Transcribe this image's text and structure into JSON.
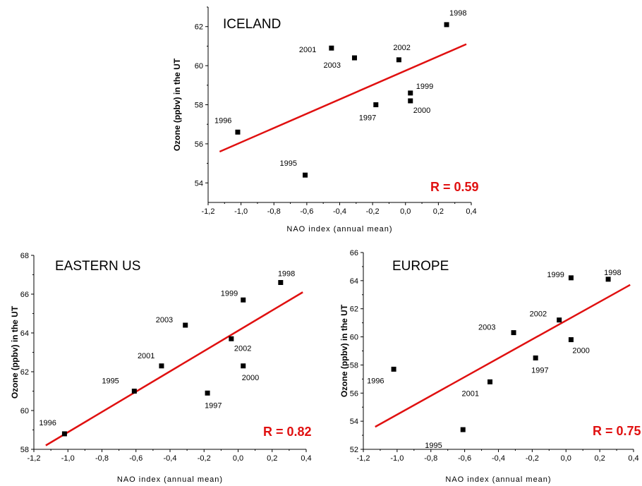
{
  "chart_data": [
    {
      "type": "scatter",
      "title": "ICELAND",
      "xlabel": "NAO index (annual mean)",
      "ylabel": "Ozone (ppbv) in the UT",
      "xlim": [
        -1.2,
        0.4
      ],
      "ylim": [
        53,
        63
      ],
      "xticks": [
        "-1,2",
        "-1,0",
        "-0,8",
        "-0,6",
        "-0,4",
        "-0,2",
        "0,0",
        "0,2",
        "0,4"
      ],
      "yticks": [
        "54",
        "56",
        "58",
        "60",
        "62"
      ],
      "points": [
        {
          "label": "1995",
          "x": -0.61,
          "y": 54.4
        },
        {
          "label": "1996",
          "x": -1.02,
          "y": 56.6
        },
        {
          "label": "1997",
          "x": -0.18,
          "y": 58.0
        },
        {
          "label": "1998",
          "x": 0.25,
          "y": 62.1
        },
        {
          "label": "1999",
          "x": 0.03,
          "y": 58.6
        },
        {
          "label": "2000",
          "x": 0.03,
          "y": 58.2
        },
        {
          "label": "2001",
          "x": -0.45,
          "y": 60.9
        },
        {
          "label": "2002",
          "x": -0.04,
          "y": 60.3
        },
        {
          "label": "2003",
          "x": -0.31,
          "y": 60.4
        }
      ],
      "fit": {
        "x": [
          -1.13,
          0.37
        ],
        "y": [
          55.6,
          61.1
        ]
      },
      "annotation": "R = 0.59",
      "fit_color": "#e01010"
    },
    {
      "type": "scatter",
      "title": "EASTERN US",
      "xlabel": "NAO index (annual mean)",
      "ylabel": "Ozone (ppbv) in the UT",
      "xlim": [
        -1.2,
        0.4
      ],
      "ylim": [
        58,
        68
      ],
      "xticks": [
        "-1,2",
        "-1,0",
        "-0,8",
        "-0,6",
        "-0,4",
        "-0,2",
        "0,0",
        "0,2",
        "0,4"
      ],
      "yticks": [
        "58",
        "60",
        "62",
        "64",
        "66",
        "68"
      ],
      "points": [
        {
          "label": "1995",
          "x": -0.61,
          "y": 61.0
        },
        {
          "label": "1996",
          "x": -1.02,
          "y": 58.8
        },
        {
          "label": "1997",
          "x": -0.18,
          "y": 60.9
        },
        {
          "label": "1998",
          "x": 0.25,
          "y": 66.6
        },
        {
          "label": "1999",
          "x": 0.03,
          "y": 65.7
        },
        {
          "label": "2000",
          "x": 0.03,
          "y": 62.3
        },
        {
          "label": "2001",
          "x": -0.45,
          "y": 62.3
        },
        {
          "label": "2002",
          "x": -0.04,
          "y": 63.7
        },
        {
          "label": "2003",
          "x": -0.31,
          "y": 64.4
        }
      ],
      "fit": {
        "x": [
          -1.13,
          0.38
        ],
        "y": [
          58.2,
          66.1
        ]
      },
      "annotation": "R = 0.82",
      "fit_color": "#e01010"
    },
    {
      "type": "scatter",
      "title": "EUROPE",
      "xlabel": "NAO index (annual mean)",
      "ylabel": "Ozone (ppbv) in the UT",
      "xlim": [
        -1.2,
        0.4
      ],
      "ylim": [
        52,
        66
      ],
      "xticks": [
        "-1,2",
        "-1,0",
        "-0,8",
        "-0,6",
        "-0,4",
        "-0,2",
        "0,0",
        "0,2",
        "0,4"
      ],
      "yticks": [
        "52",
        "54",
        "56",
        "58",
        "60",
        "62",
        "64",
        "66"
      ],
      "points": [
        {
          "label": "1995",
          "x": -0.61,
          "y": 53.4
        },
        {
          "label": "1996",
          "x": -1.02,
          "y": 57.7
        },
        {
          "label": "1997",
          "x": -0.18,
          "y": 58.5
        },
        {
          "label": "1998",
          "x": 0.25,
          "y": 64.1
        },
        {
          "label": "1999",
          "x": 0.03,
          "y": 64.2
        },
        {
          "label": "2000",
          "x": 0.03,
          "y": 59.8
        },
        {
          "label": "2001",
          "x": -0.45,
          "y": 56.8
        },
        {
          "label": "2002",
          "x": -0.04,
          "y": 61.2
        },
        {
          "label": "2003",
          "x": -0.31,
          "y": 60.3
        }
      ],
      "fit": {
        "x": [
          -1.13,
          0.38
        ],
        "y": [
          53.6,
          63.7
        ]
      },
      "annotation": "R = 0.75",
      "fit_color": "#e01010"
    }
  ]
}
